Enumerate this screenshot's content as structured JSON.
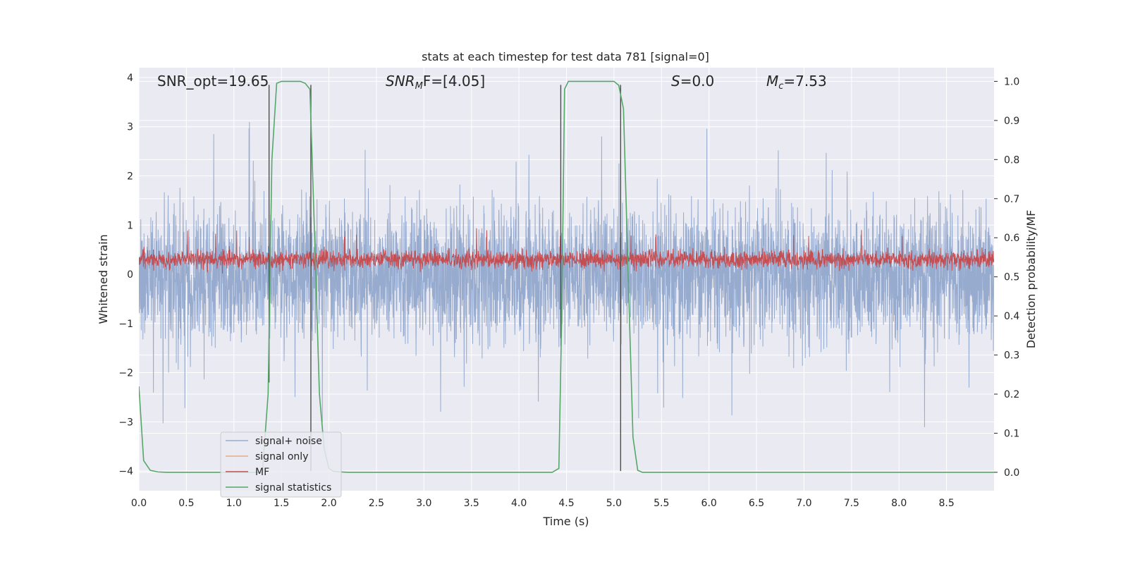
{
  "chart_data": {
    "type": "line",
    "title": "stats at each timestep for test data 781 [signal=0]",
    "xlabel": "Time (s)",
    "ylabel": "Whitened strain",
    "y2label": "Detection probability/MF",
    "xlim": [
      0,
      9.0
    ],
    "ylim": [
      -4.4,
      4.2
    ],
    "y2lim": [
      -0.047,
      1.035
    ],
    "x_ticks": [
      "0.0",
      "0.5",
      "1.0",
      "1.5",
      "2.0",
      "2.5",
      "3.0",
      "3.5",
      "4.0",
      "4.5",
      "5.0",
      "5.5",
      "6.0",
      "6.5",
      "7.0",
      "7.5",
      "8.0",
      "8.5"
    ],
    "y_ticks": [
      "−4",
      "−3",
      "−2",
      "−1",
      "0",
      "1",
      "2",
      "3",
      "4"
    ],
    "y2_ticks": [
      "0.0",
      "0.1",
      "0.2",
      "0.3",
      "0.4",
      "0.5",
      "0.6",
      "0.7",
      "0.8",
      "0.9",
      "1.0"
    ],
    "grid": true,
    "legend_position": "lower-left",
    "annotations": {
      "snr_opt": "SNR_opt=19.65",
      "snr_mf_base": "SNR",
      "snr_mf_sub": "M",
      "snr_mf_rest": "F=[4.05]",
      "s_italic": "S",
      "s_rest": "=0.0",
      "mc_base": "M",
      "mc_sub": "c",
      "mc_rest": "=7.53"
    },
    "series": [
      {
        "name": "signal+ noise",
        "color": "#97abcf",
        "axis": "left",
        "description": "dense whitened strain noise, roughly within -2 to 2",
        "envelope_abs": 1.7,
        "max_value": 3.15,
        "min_value": -3.6
      },
      {
        "name": "signal only",
        "color": "#e8a98a",
        "axis": "left",
        "values": []
      },
      {
        "name": "MF",
        "color": "#c44e52",
        "axis": "left",
        "center": 0.3,
        "min_value": 0.0,
        "max_value": 0.95
      },
      {
        "name": "signal statistics",
        "color": "#55a868",
        "axis": "right",
        "x": [
          0.0,
          0.05,
          0.12,
          0.2,
          0.3,
          1.2,
          1.3,
          1.36,
          1.4,
          1.45,
          1.5,
          1.55,
          1.7,
          1.75,
          1.8,
          1.85,
          1.9,
          1.95,
          2.0,
          2.05,
          2.2,
          4.35,
          4.42,
          4.45,
          4.48,
          4.52,
          4.6,
          5.0,
          5.05,
          5.1,
          5.15,
          5.2,
          5.25,
          5.3,
          9.0
        ],
        "y": [
          0.22,
          0.03,
          0.005,
          0.001,
          0.0,
          0.0,
          0.0,
          0.2,
          0.8,
          0.995,
          1.0,
          1.0,
          1.0,
          0.995,
          0.98,
          0.6,
          0.2,
          0.06,
          0.01,
          0.002,
          0.0,
          0.0,
          0.01,
          0.4,
          0.98,
          1.0,
          1.0,
          1.0,
          0.99,
          0.93,
          0.5,
          0.09,
          0.005,
          0.0,
          0.0
        ]
      }
    ],
    "vertical_markers": [
      {
        "x": 1.37,
        "y_top": 3.85,
        "y_bottom": -2.2
      },
      {
        "x": 1.81,
        "y_top": 3.85,
        "y_bottom": -4.0
      },
      {
        "x": 4.44,
        "y_top": 3.85,
        "y_bottom": -1.3
      },
      {
        "x": 5.07,
        "y_top": 3.85,
        "y_bottom": -4.0
      }
    ],
    "colors": {
      "plot_background": "#eaeaf2",
      "grid": "#ffffff",
      "marker": "#4d4d4d"
    }
  }
}
